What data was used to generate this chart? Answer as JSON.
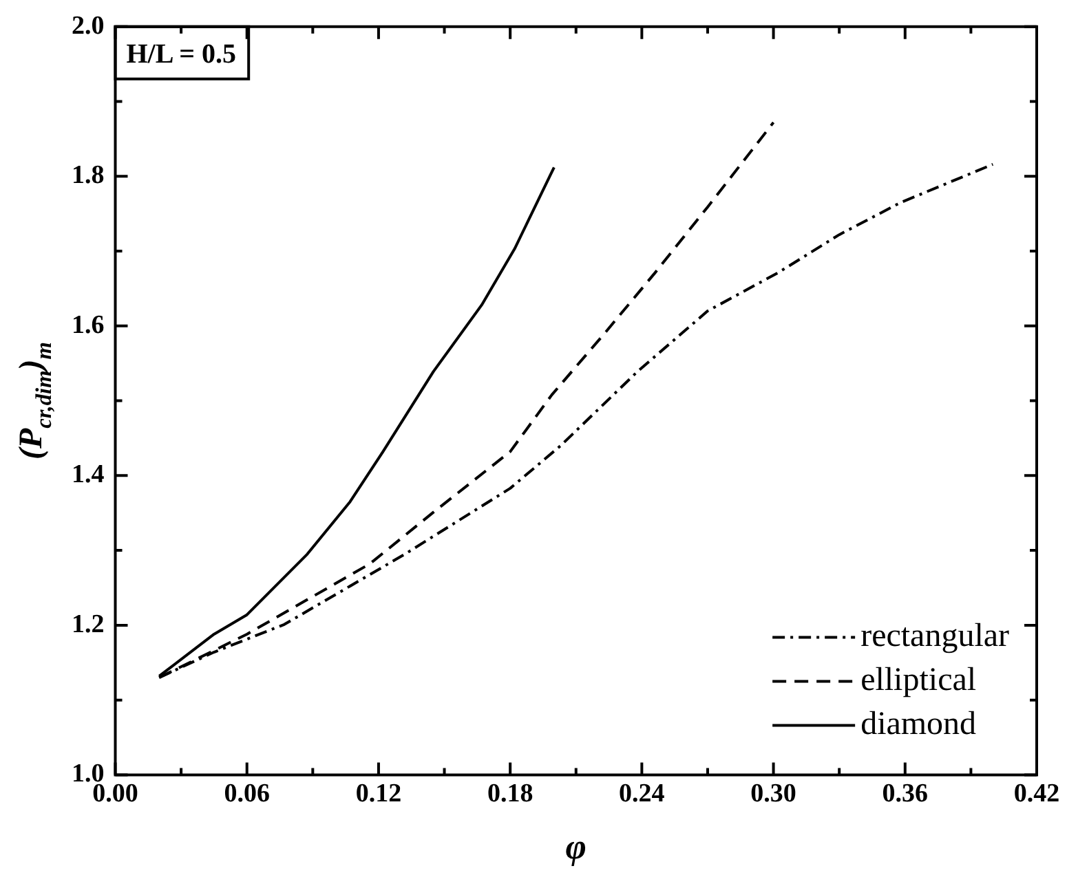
{
  "chart_data": {
    "type": "line",
    "xlabel": "φ",
    "ylabel": "(P$_{cr,dim}$)$_{m}$",
    "annotations": [
      "H/L = 0.5"
    ],
    "xlim": [
      0,
      0.42
    ],
    "xticks": [
      {
        "value": 0,
        "label": "0.00"
      },
      {
        "value": 0.03,
        "label": null
      },
      {
        "value": 0.06,
        "label": "0.06"
      },
      {
        "value": 0.09,
        "label": null
      },
      {
        "value": 0.12,
        "label": "0.12"
      },
      {
        "value": 0.15,
        "label": null
      },
      {
        "value": 0.18,
        "label": "0.18"
      },
      {
        "value": 0.21,
        "label": null
      },
      {
        "value": 0.24,
        "label": "0.24"
      },
      {
        "value": 0.27,
        "label": null
      },
      {
        "value": 0.3,
        "label": "0.30"
      },
      {
        "value": 0.33,
        "label": null
      },
      {
        "value": 0.36,
        "label": "0.36"
      },
      {
        "value": 0.39,
        "label": null
      },
      {
        "value": 0.42,
        "label": "0.42"
      }
    ],
    "ylim": [
      1,
      2
    ],
    "yticks": [
      {
        "value": 1,
        "label": "1.0"
      },
      {
        "value": 1.1,
        "label": null
      },
      {
        "value": 1.2,
        "label": "1.2"
      },
      {
        "value": 1.3,
        "label": null
      },
      {
        "value": 1.4,
        "label": "1.4"
      },
      {
        "value": 1.5,
        "label": null
      },
      {
        "value": 1.6,
        "label": "1.6"
      },
      {
        "value": 1.7,
        "label": null
      },
      {
        "value": 1.8,
        "label": "1.8"
      },
      {
        "value": 1.9,
        "label": null
      },
      {
        "value": 2,
        "label": "2.0"
      }
    ],
    "grid": false,
    "legend": "bottom right",
    "marker": "none",
    "series": [
      {
        "name": "rectangular",
        "color": "#000000",
        "line_style": "dashdot",
        "x": [
          0.02,
          0.045,
          0.077,
          0.132,
          0.18,
          0.203,
          0.238,
          0.27,
          0.302,
          0.33,
          0.358,
          0.4
        ],
        "values": [
          1.13,
          1.164,
          1.201,
          1.295,
          1.383,
          1.44,
          1.539,
          1.62,
          1.671,
          1.722,
          1.765,
          1.816
        ]
      },
      {
        "name": "elliptical",
        "color": "#000000",
        "line_style": "dashed",
        "x": [
          0.02,
          0.06,
          0.116,
          0.145,
          0.18,
          0.199,
          0.223,
          0.246,
          0.27,
          0.3
        ],
        "values": [
          1.13,
          1.188,
          1.282,
          1.351,
          1.432,
          1.508,
          1.59,
          1.671,
          1.759,
          1.872
        ]
      },
      {
        "name": "diamond",
        "color": "#000000",
        "line_style": "solid",
        "x": [
          0.02,
          0.045,
          0.06,
          0.0875,
          0.107,
          0.122,
          0.145,
          0.167,
          0.182,
          0.2
        ],
        "values": [
          1.132,
          1.188,
          1.214,
          1.295,
          1.365,
          1.432,
          1.539,
          1.628,
          1.703,
          1.812
        ]
      }
    ]
  }
}
